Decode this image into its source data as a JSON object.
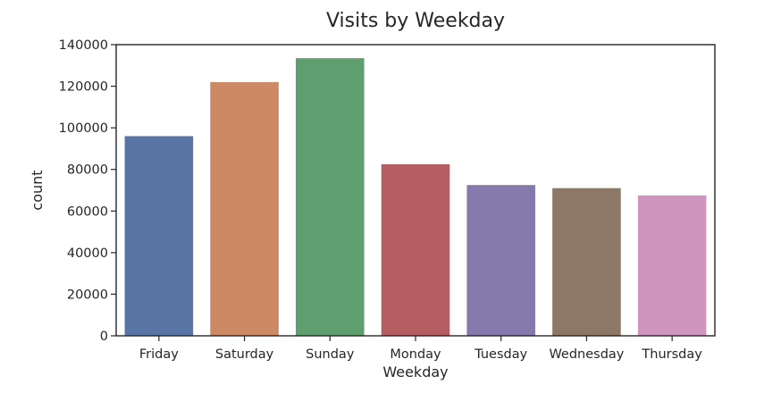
{
  "chart_data": {
    "type": "bar",
    "title": "Visits by Weekday",
    "xlabel": "Weekday",
    "ylabel": "count",
    "categories": [
      "Friday",
      "Saturday",
      "Sunday",
      "Monday",
      "Tuesday",
      "Wednesday",
      "Thursday"
    ],
    "values": [
      96000,
      122000,
      133500,
      82500,
      72500,
      71000,
      67500
    ],
    "colors": [
      "#5975a4",
      "#cc8963",
      "#5f9e6e",
      "#b55d60",
      "#857aab",
      "#8d7866",
      "#d095bf"
    ],
    "ylim": [
      0,
      140000
    ],
    "yticks": [
      "0",
      "20000",
      "40000",
      "60000",
      "80000",
      "100000",
      "120000",
      "140000"
    ],
    "grid": false,
    "legend": "none"
  }
}
